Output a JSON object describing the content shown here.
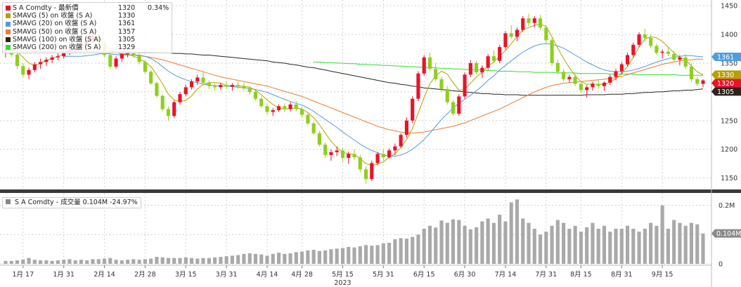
{
  "legend": [
    {
      "name": "S A Comdty - 最新價",
      "value": "1320",
      "change": "0.34%",
      "color": "#e8132a"
    },
    {
      "name": "SMAVG (5)  on 收盤 (S A)",
      "value": "1330",
      "color": "#b3a300"
    },
    {
      "name": "SMAVG (20)  on 收盤 (S A)",
      "value": "1361",
      "color": "#4f9de0"
    },
    {
      "name": "SMAVG (50)  on 收盤 (S A)",
      "value": "1357",
      "color": "#ef7a2c"
    },
    {
      "name": "SMAVG (100)  on 收盤 (S A)",
      "value": "1305",
      "color": "#2a241c"
    },
    {
      "name": "SMAVG (200)  on 收盤 (S A)",
      "value": "1329",
      "color": "#33dd33"
    }
  ],
  "volume_legend": {
    "label": "S A Comdty - 成交量 0.104M  -24.97%",
    "color": "#888888"
  },
  "price_tags": [
    {
      "value": 1361,
      "text": "1361",
      "color": "#4f9de0",
      "text_color": "#ffffff"
    },
    {
      "value": 1330,
      "text": "1330",
      "color": "#b3a300",
      "text_color": "#ffffff"
    },
    {
      "value": 1320,
      "text": "1320",
      "color": "#e8132a",
      "text_color": "#ffffff"
    },
    {
      "value": 1305,
      "text": "1305",
      "color": "#2a241c",
      "text_color": "#ffffff"
    }
  ],
  "volume_tag": {
    "text": "0.104M",
    "color": "#8a8a8a"
  },
  "chart_data": {
    "type": "candlestick",
    "year_label": "2023",
    "x_ticks": [
      "1月 17",
      "1月 31",
      "2月 14",
      "2月 28",
      "3月 15",
      "3月 31",
      "4月 14",
      "4月 28",
      "5月 15",
      "5月 31",
      "6月 15",
      "6月 30",
      "7月 14",
      "7月 31",
      "8月 15",
      "8月 31",
      "9月 15"
    ],
    "price_axis": {
      "ticks": [
        1150,
        1200,
        1250,
        1300,
        1350,
        1400,
        1450
      ],
      "range": [
        1130,
        1460
      ]
    },
    "volume_axis": {
      "ticks": [
        "0",
        "0.1M",
        "0.2M"
      ],
      "tick_values": [
        0,
        0.1,
        0.2
      ],
      "range": [
        0,
        0.235
      ]
    },
    "colors": {
      "up": "#e8132a",
      "down": "#8fcf1c",
      "volume": "#a9a9a9"
    },
    "ohlc": [
      [
        1370,
        1385,
        1360,
        1375
      ],
      [
        1375,
        1388,
        1362,
        1365
      ],
      [
        1365,
        1372,
        1340,
        1345
      ],
      [
        1345,
        1350,
        1325,
        1330
      ],
      [
        1330,
        1342,
        1322,
        1338
      ],
      [
        1338,
        1352,
        1334,
        1348
      ],
      [
        1348,
        1358,
        1340,
        1352
      ],
      [
        1352,
        1360,
        1345,
        1356
      ],
      [
        1356,
        1364,
        1350,
        1360
      ],
      [
        1360,
        1368,
        1355,
        1362
      ],
      [
        1362,
        1372,
        1358,
        1369
      ],
      [
        1369,
        1378,
        1364,
        1374
      ],
      [
        1374,
        1384,
        1370,
        1380
      ],
      [
        1380,
        1390,
        1374,
        1383
      ],
      [
        1383,
        1394,
        1378,
        1390
      ],
      [
        1390,
        1405,
        1386,
        1398
      ],
      [
        1398,
        1403,
        1382,
        1386
      ],
      [
        1386,
        1390,
        1360,
        1364
      ],
      [
        1364,
        1368,
        1340,
        1344
      ],
      [
        1344,
        1362,
        1340,
        1358
      ],
      [
        1358,
        1370,
        1352,
        1366
      ],
      [
        1366,
        1375,
        1360,
        1371
      ],
      [
        1371,
        1376,
        1360,
        1364
      ],
      [
        1364,
        1368,
        1348,
        1352
      ],
      [
        1352,
        1356,
        1332,
        1335
      ],
      [
        1335,
        1338,
        1312,
        1315
      ],
      [
        1315,
        1318,
        1290,
        1293
      ],
      [
        1293,
        1296,
        1266,
        1270
      ],
      [
        1270,
        1275,
        1250,
        1258
      ],
      [
        1258,
        1285,
        1255,
        1282
      ],
      [
        1282,
        1300,
        1278,
        1296
      ],
      [
        1296,
        1312,
        1292,
        1308
      ],
      [
        1308,
        1322,
        1304,
        1318
      ],
      [
        1318,
        1330,
        1312,
        1325
      ],
      [
        1325,
        1335,
        1312,
        1316
      ],
      [
        1316,
        1320,
        1305,
        1310
      ],
      [
        1310,
        1314,
        1302,
        1308
      ],
      [
        1308,
        1316,
        1304,
        1312
      ],
      [
        1312,
        1318,
        1305,
        1309
      ],
      [
        1309,
        1315,
        1302,
        1312
      ],
      [
        1312,
        1318,
        1305,
        1310
      ],
      [
        1310,
        1316,
        1302,
        1306
      ],
      [
        1306,
        1310,
        1295,
        1300
      ],
      [
        1300,
        1304,
        1285,
        1288
      ],
      [
        1288,
        1292,
        1272,
        1275
      ],
      [
        1275,
        1280,
        1260,
        1265
      ],
      [
        1265,
        1272,
        1258,
        1268
      ],
      [
        1268,
        1278,
        1265,
        1275
      ],
      [
        1275,
        1280,
        1265,
        1270
      ],
      [
        1270,
        1282,
        1266,
        1278
      ],
      [
        1278,
        1284,
        1266,
        1270
      ],
      [
        1270,
        1274,
        1255,
        1260
      ],
      [
        1260,
        1264,
        1242,
        1245
      ],
      [
        1245,
        1248,
        1225,
        1228
      ],
      [
        1228,
        1232,
        1205,
        1208
      ],
      [
        1208,
        1212,
        1185,
        1190
      ],
      [
        1190,
        1200,
        1180,
        1195
      ],
      [
        1195,
        1205,
        1188,
        1198
      ],
      [
        1198,
        1202,
        1178,
        1185
      ],
      [
        1185,
        1196,
        1175,
        1192
      ],
      [
        1192,
        1200,
        1182,
        1186
      ],
      [
        1186,
        1190,
        1160,
        1165
      ],
      [
        1165,
        1170,
        1140,
        1148
      ],
      [
        1148,
        1180,
        1145,
        1176
      ],
      [
        1176,
        1195,
        1172,
        1192
      ],
      [
        1192,
        1200,
        1180,
        1186
      ],
      [
        1186,
        1202,
        1184,
        1198
      ],
      [
        1198,
        1210,
        1190,
        1205
      ],
      [
        1205,
        1228,
        1202,
        1225
      ],
      [
        1225,
        1255,
        1220,
        1250
      ],
      [
        1250,
        1292,
        1246,
        1288
      ],
      [
        1288,
        1336,
        1284,
        1332
      ],
      [
        1332,
        1364,
        1328,
        1360
      ],
      [
        1360,
        1368,
        1336,
        1340
      ],
      [
        1340,
        1350,
        1318,
        1322
      ],
      [
        1322,
        1326,
        1300,
        1305
      ],
      [
        1305,
        1310,
        1278,
        1282
      ],
      [
        1282,
        1286,
        1258,
        1262
      ],
      [
        1262,
        1296,
        1258,
        1292
      ],
      [
        1292,
        1334,
        1288,
        1330
      ],
      [
        1330,
        1355,
        1326,
        1350
      ],
      [
        1350,
        1354,
        1330,
        1334
      ],
      [
        1334,
        1346,
        1324,
        1342
      ],
      [
        1342,
        1366,
        1338,
        1362
      ],
      [
        1362,
        1372,
        1350,
        1354
      ],
      [
        1354,
        1382,
        1350,
        1378
      ],
      [
        1378,
        1406,
        1374,
        1402
      ],
      [
        1402,
        1416,
        1392,
        1396
      ],
      [
        1396,
        1412,
        1388,
        1408
      ],
      [
        1408,
        1432,
        1404,
        1428
      ],
      [
        1428,
        1436,
        1414,
        1420
      ],
      [
        1420,
        1432,
        1412,
        1428
      ],
      [
        1428,
        1434,
        1408,
        1412
      ],
      [
        1412,
        1416,
        1385,
        1390
      ],
      [
        1390,
        1394,
        1345,
        1350
      ],
      [
        1350,
        1356,
        1330,
        1335
      ],
      [
        1335,
        1340,
        1318,
        1322
      ],
      [
        1322,
        1330,
        1316,
        1326
      ],
      [
        1326,
        1332,
        1310,
        1314
      ],
      [
        1314,
        1318,
        1298,
        1303
      ],
      [
        1303,
        1312,
        1290,
        1308
      ],
      [
        1308,
        1318,
        1302,
        1314
      ],
      [
        1314,
        1322,
        1305,
        1310
      ],
      [
        1310,
        1318,
        1302,
        1316
      ],
      [
        1316,
        1330,
        1312,
        1326
      ],
      [
        1326,
        1340,
        1320,
        1336
      ],
      [
        1336,
        1352,
        1330,
        1348
      ],
      [
        1348,
        1368,
        1344,
        1364
      ],
      [
        1364,
        1386,
        1360,
        1382
      ],
      [
        1382,
        1404,
        1378,
        1400
      ],
      [
        1400,
        1410,
        1388,
        1394
      ],
      [
        1394,
        1400,
        1376,
        1380
      ],
      [
        1380,
        1384,
        1364,
        1368
      ],
      [
        1368,
        1374,
        1358,
        1370
      ],
      [
        1370,
        1378,
        1362,
        1366
      ],
      [
        1366,
        1372,
        1352,
        1356
      ],
      [
        1356,
        1364,
        1346,
        1360
      ],
      [
        1360,
        1366,
        1340,
        1344
      ],
      [
        1344,
        1350,
        1318,
        1322
      ],
      [
        1322,
        1326,
        1310,
        1314
      ],
      [
        1314,
        1322,
        1308,
        1320
      ]
    ],
    "sma5": [
      1378,
      1375,
      1370,
      1360,
      1350,
      1346,
      1350,
      1355,
      1358,
      1362,
      1366,
      1371,
      1375,
      1380,
      1384,
      1388,
      1388,
      1381,
      1373,
      1370,
      1368,
      1366,
      1362,
      1358,
      1352,
      1344,
      1330,
      1314,
      1296,
      1286,
      1283,
      1285,
      1293,
      1305,
      1313,
      1316,
      1316,
      1315,
      1311,
      1310,
      1310,
      1310,
      1308,
      1303,
      1295,
      1286,
      1278,
      1272,
      1270,
      1271,
      1272,
      1270,
      1264,
      1255,
      1243,
      1228,
      1214,
      1203,
      1195,
      1192,
      1191,
      1184,
      1175,
      1172,
      1174,
      1178,
      1186,
      1192,
      1203,
      1217,
      1236,
      1263,
      1290,
      1314,
      1328,
      1336,
      1331,
      1316,
      1303,
      1304,
      1315,
      1326,
      1334,
      1345,
      1352,
      1362,
      1372,
      1384,
      1396,
      1408,
      1412,
      1416,
      1418,
      1414,
      1396,
      1376,
      1358,
      1342,
      1328,
      1318,
      1313,
      1314,
      1313,
      1313,
      1317,
      1323,
      1332,
      1344,
      1360,
      1378,
      1392,
      1396,
      1394,
      1388,
      1378,
      1368,
      1360,
      1356,
      1345,
      1335,
      1330
    ],
    "sma20": [
      null,
      null,
      null,
      null,
      null,
      null,
      null,
      null,
      null,
      null,
      1362,
      1362,
      1362,
      1362,
      1363,
      1364,
      1366,
      1367,
      1366,
      1365,
      1364,
      1364,
      1364,
      1364,
      1362,
      1358,
      1352,
      1344,
      1336,
      1330,
      1325,
      1321,
      1318,
      1316,
      1314,
      1312,
      1311,
      1310,
      1310,
      1309,
      1308,
      1307,
      1306,
      1304,
      1302,
      1299,
      1295,
      1291,
      1287,
      1283,
      1280,
      1277,
      1272,
      1266,
      1259,
      1252,
      1245,
      1238,
      1230,
      1223,
      1216,
      1209,
      1203,
      1198,
      1194,
      1190,
      1188,
      1188,
      1190,
      1194,
      1200,
      1208,
      1217,
      1228,
      1240,
      1252,
      1262,
      1272,
      1280,
      1287,
      1294,
      1302,
      1310,
      1320,
      1328,
      1338,
      1346,
      1354,
      1362,
      1369,
      1375,
      1380,
      1383,
      1384,
      1383,
      1380,
      1376,
      1370,
      1364,
      1358,
      1352,
      1347,
      1342,
      1338,
      1336,
      1335,
      1335,
      1336,
      1338,
      1341,
      1344,
      1348,
      1352,
      1355,
      1358,
      1360,
      1362,
      1363,
      1363,
      1362,
      1361
    ],
    "sma50": [
      null,
      null,
      null,
      null,
      null,
      null,
      null,
      null,
      null,
      null,
      1374,
      1374,
      1374,
      1373,
      1373,
      1372,
      1371,
      1370,
      1369,
      1368,
      1366,
      1365,
      1364,
      1363,
      1362,
      1360,
      1358,
      1356,
      1353,
      1350,
      1347,
      1344,
      1341,
      1338,
      1335,
      1332,
      1329,
      1326,
      1324,
      1322,
      1320,
      1318,
      1316,
      1314,
      1312,
      1310,
      1307,
      1304,
      1301,
      1298,
      1295,
      1292,
      1288,
      1284,
      1280,
      1276,
      1272,
      1268,
      1264,
      1260,
      1256,
      1252,
      1248,
      1244,
      1240,
      1237,
      1234,
      1232,
      1230,
      1229,
      1228,
      1229,
      1230,
      1232,
      1234,
      1236,
      1238,
      1240,
      1243,
      1246,
      1250,
      1254,
      1258,
      1262,
      1266,
      1270,
      1275,
      1280,
      1285,
      1290,
      1295,
      1300,
      1304,
      1308,
      1311,
      1313,
      1315,
      1316,
      1317,
      1318,
      1319,
      1320,
      1321,
      1322,
      1323,
      1325,
      1327,
      1330,
      1333,
      1336,
      1339,
      1342,
      1345,
      1348,
      1350,
      1352,
      1354,
      1355,
      1356,
      1357,
      1357
    ],
    "sma100": [
      1372,
      1372,
      1371,
      1371,
      1371,
      1370,
      1370,
      1370,
      1370,
      1370,
      1370,
      1370,
      1370,
      1370,
      1370,
      1370,
      1370,
      1370,
      1370,
      1370,
      1370,
      1370,
      1369,
      1369,
      1369,
      1369,
      1368,
      1368,
      1368,
      1367,
      1367,
      1366,
      1366,
      1365,
      1364,
      1364,
      1363,
      1362,
      1361,
      1360,
      1359,
      1358,
      1357,
      1356,
      1355,
      1354,
      1352,
      1351,
      1350,
      1348,
      1347,
      1345,
      1343,
      1342,
      1340,
      1338,
      1336,
      1334,
      1332,
      1330,
      1328,
      1326,
      1324,
      1322,
      1320,
      1318,
      1316,
      1315,
      1313,
      1312,
      1310,
      1309,
      1307,
      1306,
      1305,
      1304,
      1303,
      1302,
      1301,
      1300,
      1299,
      1298,
      1297,
      1297,
      1296,
      1296,
      1295,
      1295,
      1295,
      1294,
      1294,
      1294,
      1294,
      1294,
      1294,
      1294,
      1294,
      1294,
      1294,
      1294,
      1295,
      1295,
      1295,
      1295,
      1296,
      1296,
      1296,
      1297,
      1297,
      1298,
      1299,
      1299,
      1300,
      1300,
      1301,
      1302,
      1302,
      1303,
      1303,
      1304,
      1305
    ],
    "sma200": [
      null,
      null,
      null,
      null,
      null,
      null,
      null,
      null,
      null,
      null,
      null,
      null,
      null,
      null,
      null,
      null,
      null,
      null,
      null,
      null,
      null,
      null,
      null,
      null,
      null,
      null,
      null,
      null,
      null,
      null,
      null,
      null,
      null,
      null,
      null,
      null,
      null,
      null,
      null,
      null,
      null,
      null,
      null,
      null,
      null,
      null,
      null,
      null,
      null,
      null,
      null,
      null,
      null,
      1352,
      1352,
      1351,
      1351,
      1350,
      1350,
      1349,
      1349,
      1348,
      1348,
      1347,
      1347,
      1346,
      1346,
      1345,
      1345,
      1344,
      1344,
      1343,
      1343,
      1342,
      1342,
      1341,
      1341,
      1340,
      1340,
      1339,
      1339,
      1338,
      1338,
      1337,
      1337,
      1336,
      1336,
      1336,
      1335,
      1335,
      1335,
      1334,
      1334,
      1334,
      1334,
      1333,
      1333,
      1333,
      1333,
      1332,
      1332,
      1332,
      1332,
      1332,
      1331,
      1331,
      1331,
      1331,
      1331,
      1330,
      1330,
      1330,
      1330,
      1330,
      1330,
      1330,
      1329,
      1329,
      1329,
      1329,
      1329
    ],
    "volume": [
      0.01,
      0.01,
      0.012,
      0.015,
      0.02,
      0.014,
      0.012,
      0.012,
      0.01,
      0.012,
      0.014,
      0.016,
      0.012,
      0.014,
      0.012,
      0.016,
      0.016,
      0.018,
      0.02,
      0.014,
      0.012,
      0.014,
      0.016,
      0.014,
      0.016,
      0.018,
      0.024,
      0.022,
      0.02,
      0.02,
      0.02,
      0.022,
      0.02,
      0.018,
      0.02,
      0.02,
      0.022,
      0.024,
      0.026,
      0.028,
      0.03,
      0.034,
      0.036,
      0.034,
      0.032,
      0.028,
      0.034,
      0.038,
      0.034,
      0.036,
      0.04,
      0.042,
      0.046,
      0.048,
      0.044,
      0.046,
      0.05,
      0.052,
      0.054,
      0.058,
      0.056,
      0.06,
      0.064,
      0.062,
      0.064,
      0.07,
      0.072,
      0.084,
      0.088,
      0.086,
      0.092,
      0.1,
      0.12,
      0.13,
      0.124,
      0.148,
      0.14,
      0.152,
      0.15,
      0.13,
      0.118,
      0.125,
      0.145,
      0.155,
      0.14,
      0.168,
      0.145,
      0.21,
      0.22,
      0.155,
      0.14,
      0.12,
      0.1,
      0.11,
      0.13,
      0.15,
      0.14,
      0.12,
      0.13,
      0.11,
      0.125,
      0.14,
      0.12,
      0.13,
      0.11,
      0.12,
      0.12,
      0.13,
      0.12,
      0.11,
      0.12,
      0.14,
      0.13,
      0.2,
      0.12,
      0.15,
      0.14,
      0.13,
      0.14,
      0.135,
      0.104
    ],
    "tick_positions": [
      3,
      10,
      17,
      24,
      31,
      38,
      45,
      51,
      58,
      65,
      72,
      79,
      86,
      93,
      99,
      106,
      113
    ]
  }
}
